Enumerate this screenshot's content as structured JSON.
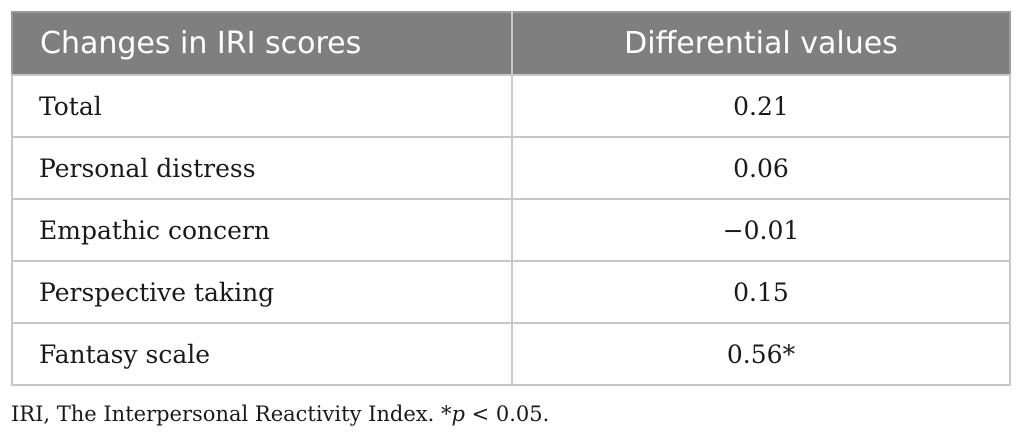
{
  "table": {
    "headers": [
      "Changes in IRI scores",
      "Differential values"
    ],
    "rows": [
      {
        "label": "Total",
        "value": "0.21"
      },
      {
        "label": "Personal distress",
        "value": "0.06"
      },
      {
        "label": "Empathic concern",
        "value": "−0.01"
      },
      {
        "label": "Perspective taking",
        "value": "0.15"
      },
      {
        "label": "Fantasy scale",
        "value": "0.56*"
      }
    ]
  },
  "footnote": {
    "prefix": "IRI, The Interpersonal Reactivity Index. *",
    "p_symbol": "p",
    "suffix": " < 0.05."
  }
}
